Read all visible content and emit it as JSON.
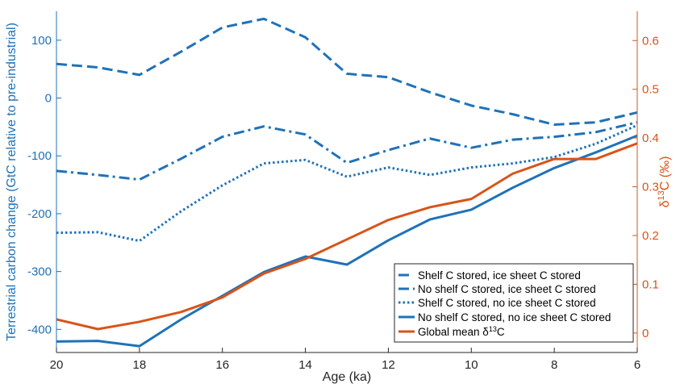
{
  "chart_data": {
    "type": "line",
    "xlabel": "Age (ka)",
    "ylabel_left": "Terrestrial carbon change (GtC relative to pre-industrial)",
    "ylabel_right_base": "δ",
    "ylabel_right_sup": "13",
    "ylabel_right_rest": "C (‰)",
    "xlim": [
      20,
      6
    ],
    "x_reversed": true,
    "ylim_left": [
      -440,
      150
    ],
    "ylim_right": [
      -0.04,
      0.66
    ],
    "xticks": [
      20,
      18,
      16,
      14,
      12,
      10,
      8,
      6
    ],
    "xtick_labels": [
      "20",
      "18",
      "16",
      "14",
      "12",
      "10",
      "8",
      "6"
    ],
    "yticks_left": [
      -400,
      -300,
      -200,
      -100,
      0,
      100
    ],
    "ytick_labels_left": [
      "-400",
      "-300",
      "-200",
      "-100",
      "0",
      "100"
    ],
    "yticks_right": [
      0,
      0.1,
      0.2,
      0.3,
      0.4,
      0.5,
      0.6
    ],
    "ytick_labels_right": [
      "0",
      "0.1",
      "0.2",
      "0.3",
      "0.4",
      "0.5",
      "0.6"
    ],
    "grid": false,
    "legend_position": "bottom-right",
    "colors": {
      "blue": "#1f72b8",
      "orange": "#d95319",
      "axis_black": "#262626"
    },
    "x": [
      20,
      19,
      18,
      17,
      16,
      15,
      14,
      13,
      12,
      11,
      10,
      9,
      8,
      7,
      6
    ],
    "series": [
      {
        "name": "Shelf C stored, ice sheet C stored",
        "axis": "left",
        "style": "dashed",
        "color": "#1f72b8",
        "values": [
          59,
          53,
          40,
          80,
          122,
          137,
          105,
          42,
          36,
          10,
          -13,
          -28,
          -46,
          -42,
          -25
        ]
      },
      {
        "name": "No shelf C stored, ice sheet C stored",
        "axis": "left",
        "style": "dashdot",
        "color": "#1f72b8",
        "values": [
          -126,
          -133,
          -141,
          -105,
          -67,
          -49,
          -63,
          -112,
          -90,
          -70,
          -86,
          -72,
          -67,
          -59,
          -42
        ]
      },
      {
        "name": "Shelf C stored,  no ice sheet C stored",
        "axis": "left",
        "style": "dotted",
        "color": "#1f72b8",
        "values": [
          -233,
          -232,
          -247,
          -196,
          -151,
          -113,
          -107,
          -136,
          -120,
          -133,
          -120,
          -113,
          -102,
          -79,
          -47
        ]
      },
      {
        "name": "No shelf C stored,  no ice sheet C stored",
        "axis": "left",
        "style": "solid",
        "color": "#1f72b8",
        "values": [
          -421,
          -420,
          -429,
          -383,
          -342,
          -301,
          -274,
          -288,
          -246,
          -210,
          -193,
          -155,
          -121,
          -94,
          -65
        ]
      },
      {
        "name_base": "Global mean δ",
        "name_sup": "13",
        "name_rest": "C",
        "axis": "right",
        "style": "solid",
        "color": "#d95319",
        "values": [
          0.028,
          0.008,
          0.023,
          0.043,
          0.073,
          0.122,
          0.152,
          0.192,
          0.232,
          0.258,
          0.275,
          0.327,
          0.357,
          0.357,
          0.389
        ]
      }
    ]
  }
}
